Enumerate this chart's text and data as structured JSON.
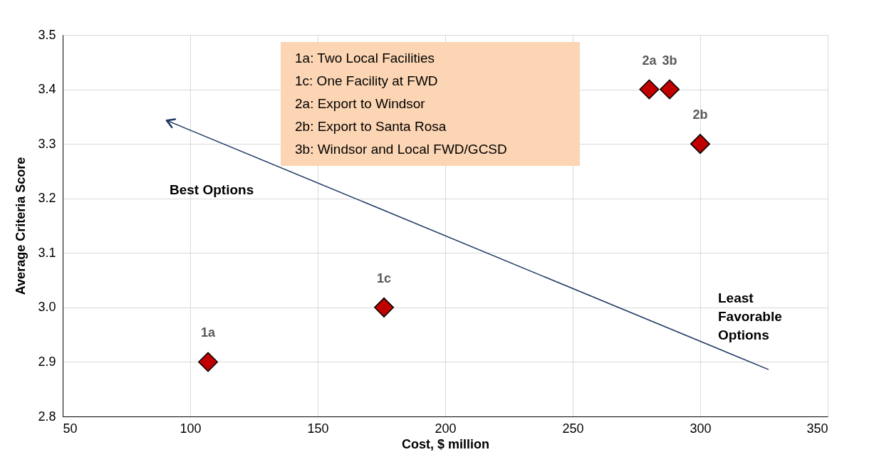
{
  "chart_data": {
    "type": "scatter",
    "xlabel": "Cost, $ million",
    "ylabel": "Average Criteria Score",
    "x": [
      107,
      176,
      280,
      288,
      300
    ],
    "series": [
      {
        "color": "#c00000",
        "values": [
          2.9,
          3.0,
          3.4,
          3.4,
          3.3
        ]
      },
      {
        "type": "line",
        "marker": "none",
        "color": "#1f3864",
        "x": [
          326.8,
          90.8
        ],
        "values": [
          2.886,
          3.343
        ]
      }
    ],
    "xlim": [
      50,
      350
    ],
    "xticks": [
      50,
      100,
      150,
      200,
      250,
      300,
      350
    ],
    "ylim": [
      2.8,
      3.5
    ],
    "yticks": [
      {
        "value": 2.8,
        "label": "2.8"
      },
      {
        "value": 2.9,
        "label": "2.9"
      },
      {
        "value": 3.0,
        "label": "3.0"
      },
      {
        "value": 3.1,
        "label": "3.1"
      },
      {
        "value": 3.2,
        "label": "3.2"
      },
      {
        "value": 3.3,
        "label": "3.3"
      },
      {
        "value": 3.4,
        "label": "3.4"
      },
      {
        "value": 3.5,
        "label": "3.5"
      }
    ],
    "grid": true,
    "marker": "diamond",
    "annotations": [
      {
        "text": "1a",
        "x": 107,
        "y": 2.9
      },
      {
        "text": "1c",
        "x": 176,
        "y": 3.0
      },
      {
        "text": "2a",
        "x": 280,
        "y": 3.4
      },
      {
        "text": "3b",
        "x": 288,
        "y": 3.4
      },
      {
        "text": "2b",
        "x": 300,
        "y": 3.3
      },
      "Best Options",
      "Least Favorable Options",
      "1a: Two Local Facilities",
      "1c: One Facility at FWD",
      "2a: Export to Windsor",
      "2b: Export to Santa Rosa",
      "3b: Windsor and Local FWD/GCSD"
    ]
  }
}
